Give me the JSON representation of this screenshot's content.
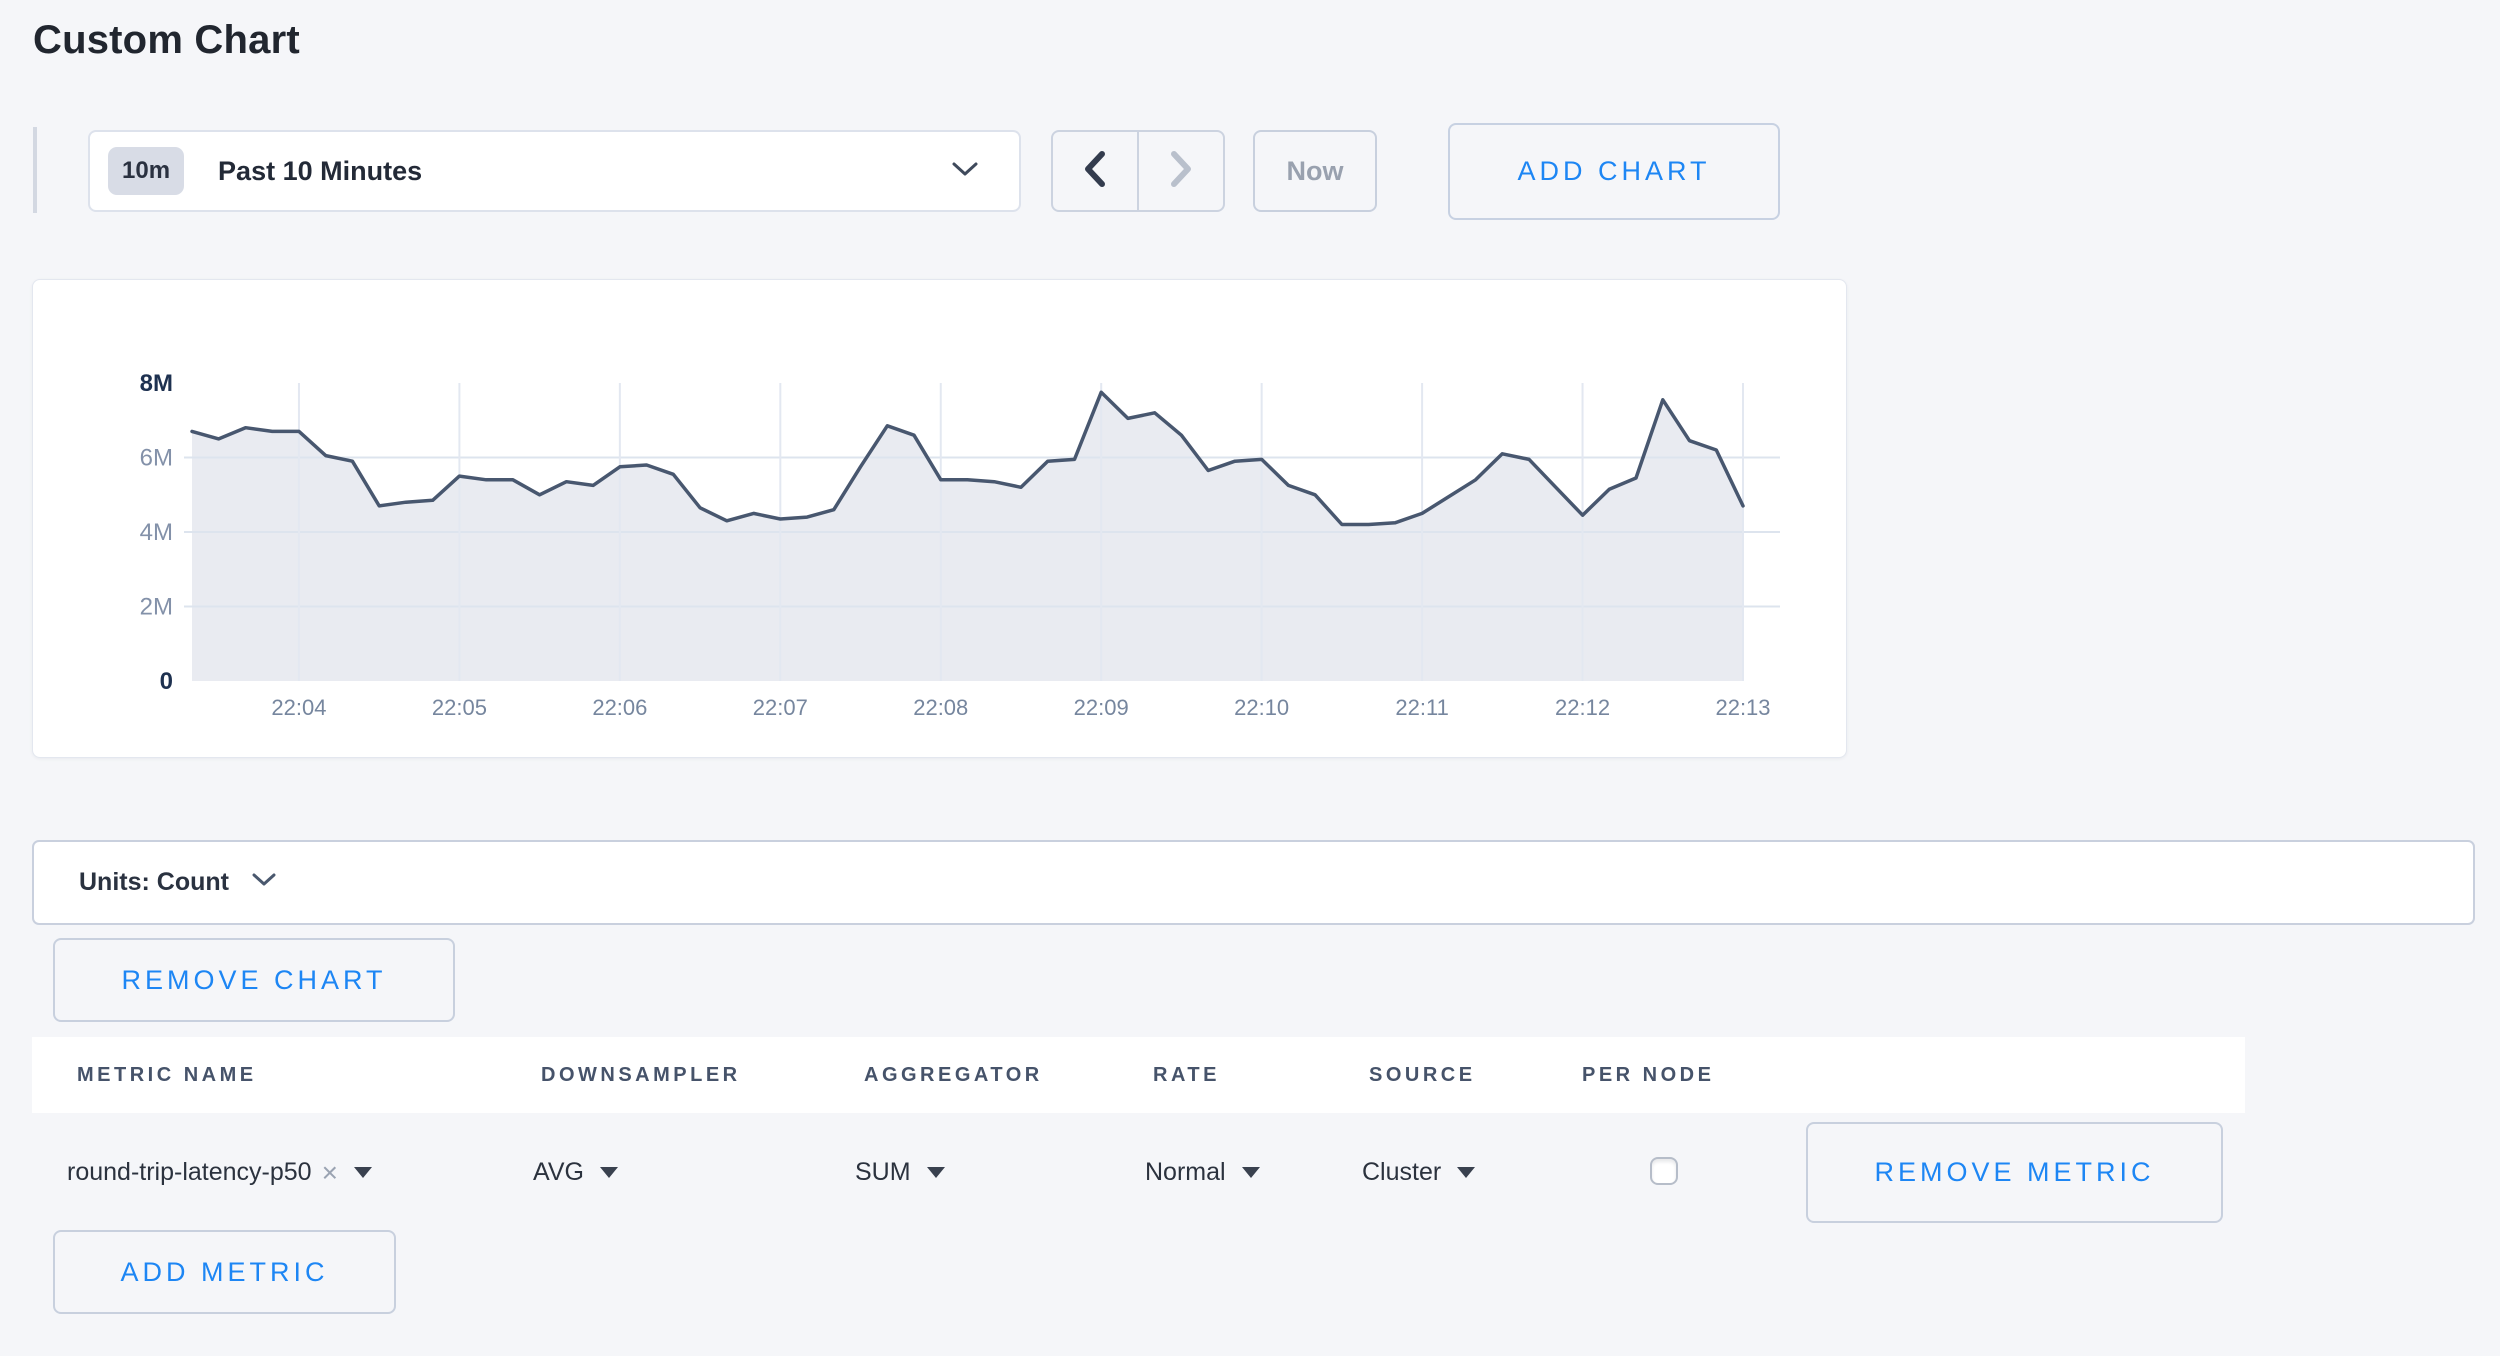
{
  "page": {
    "title": "Custom Chart",
    "background": "#f5f6f9"
  },
  "toolbar": {
    "time_range": {
      "badge": "10m",
      "label": "Past 10 Minutes"
    },
    "prev_label": "previous time window",
    "next_label": "next time window",
    "now_label": "Now",
    "add_chart_label": "ADD CHART"
  },
  "units_bar": {
    "label": "Units: Count"
  },
  "chart_actions": {
    "remove_chart_label": "REMOVE CHART"
  },
  "chart_data": {
    "type": "area",
    "title": "",
    "xlabel": "",
    "ylabel": "Count",
    "ylim_millions": [
      0,
      8
    ],
    "grid": true,
    "legend": "none",
    "line_color": "#48576f",
    "fill_color": "#e9ebf1",
    "x_start_time": "22:03:20",
    "x_interval_seconds": 10,
    "x_tick_labels": [
      "22:04",
      "22:05",
      "22:06",
      "22:07",
      "22:08",
      "22:09",
      "22:10",
      "22:11",
      "22:12",
      "22:13"
    ],
    "x_first_tick_point_index": 4,
    "x_points_per_tick": 6,
    "y_ticks": [
      {
        "label": "0",
        "value_millions": 0,
        "major": true
      },
      {
        "label": "2M",
        "value_millions": 2,
        "major": false
      },
      {
        "label": "4M",
        "value_millions": 4,
        "major": false
      },
      {
        "label": "6M",
        "value_millions": 6,
        "major": false
      },
      {
        "label": "8M",
        "value_millions": 8,
        "major": true
      }
    ],
    "series": [
      {
        "name": "round-trip-latency-p50",
        "values_millions": [
          6.7,
          6.5,
          6.8,
          6.7,
          6.7,
          6.05,
          5.9,
          4.7,
          4.8,
          4.85,
          5.5,
          5.4,
          5.4,
          5.0,
          5.35,
          5.25,
          5.75,
          5.8,
          5.55,
          4.65,
          4.3,
          4.5,
          4.35,
          4.4,
          4.6,
          5.75,
          6.85,
          6.6,
          5.4,
          5.4,
          5.35,
          5.2,
          5.9,
          5.95,
          7.75,
          7.05,
          7.2,
          6.6,
          5.65,
          5.9,
          5.95,
          5.25,
          5.0,
          4.2,
          4.2,
          4.25,
          4.5,
          4.95,
          5.4,
          6.1,
          5.95,
          5.2,
          4.45,
          5.15,
          5.45,
          7.55,
          6.45,
          6.2,
          4.7
        ]
      }
    ]
  },
  "metrics_table": {
    "headers": [
      "METRIC NAME",
      "DOWNSAMPLER",
      "AGGREGATOR",
      "RATE",
      "SOURCE",
      "PER NODE"
    ],
    "rows": [
      {
        "metric_name": "round-trip-latency-p50",
        "remove_tag_symbol": "×",
        "downsampler": "AVG",
        "aggregator": "SUM",
        "rate": "Normal",
        "source": "Cluster",
        "per_node_checked": false,
        "remove_label": "REMOVE METRIC"
      }
    ],
    "add_metric_label": "ADD METRIC"
  },
  "colors": {
    "accent_blue": "#1d86f4",
    "text_dark": "#21262f",
    "text_slate": "#46536a",
    "axis_major": "#1e3150",
    "axis_minor": "#8391a9",
    "axis_x": "#76869e",
    "grid_line": "#dde4ee",
    "chart_line": "#48576f",
    "chart_fill": "#e9ebf1",
    "disabled_gray": "#99a1af"
  }
}
